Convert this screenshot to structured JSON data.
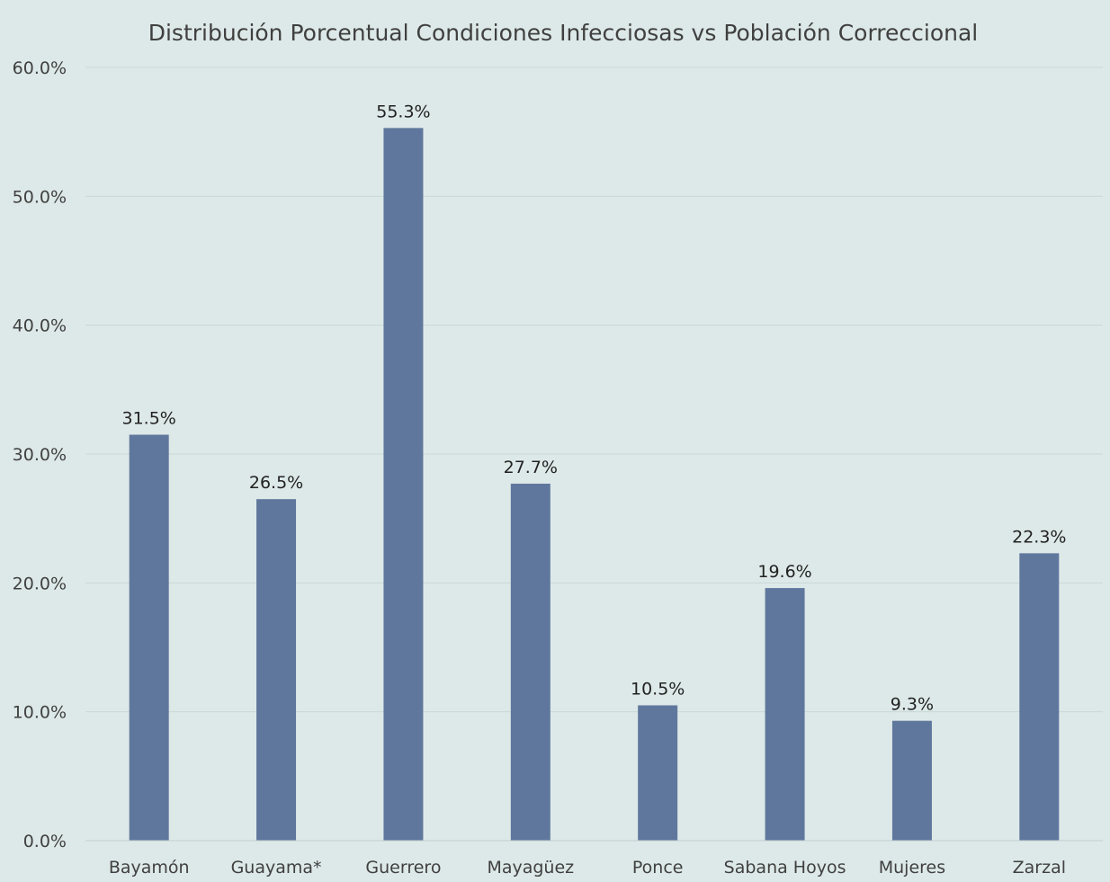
{
  "chart_data": {
    "type": "bar",
    "title": "Distribución Porcentual  Condiciones Infecciosas vs Población Correccional",
    "categories": [
      "Bayamón",
      "Guayama*",
      "Guerrero",
      "Mayagüez",
      "Ponce",
      "Sabana Hoyos",
      "Mujeres",
      "Zarzal"
    ],
    "values": [
      31.5,
      26.5,
      55.3,
      27.7,
      10.5,
      19.6,
      9.3,
      22.3
    ],
    "data_labels": [
      "31.5%",
      "26.5%",
      "55.3%",
      "27.7%",
      "10.5%",
      "19.6%",
      "9.3%",
      "22.3%"
    ],
    "y_ticks": [
      "0.0%",
      "10.0%",
      "20.0%",
      "30.0%",
      "40.0%",
      "50.0%",
      "60.0%"
    ],
    "ylim": [
      0,
      60
    ],
    "grid": true,
    "legend": "none",
    "colors": {
      "bar": "#60779d",
      "background": "#dde9e8"
    }
  }
}
